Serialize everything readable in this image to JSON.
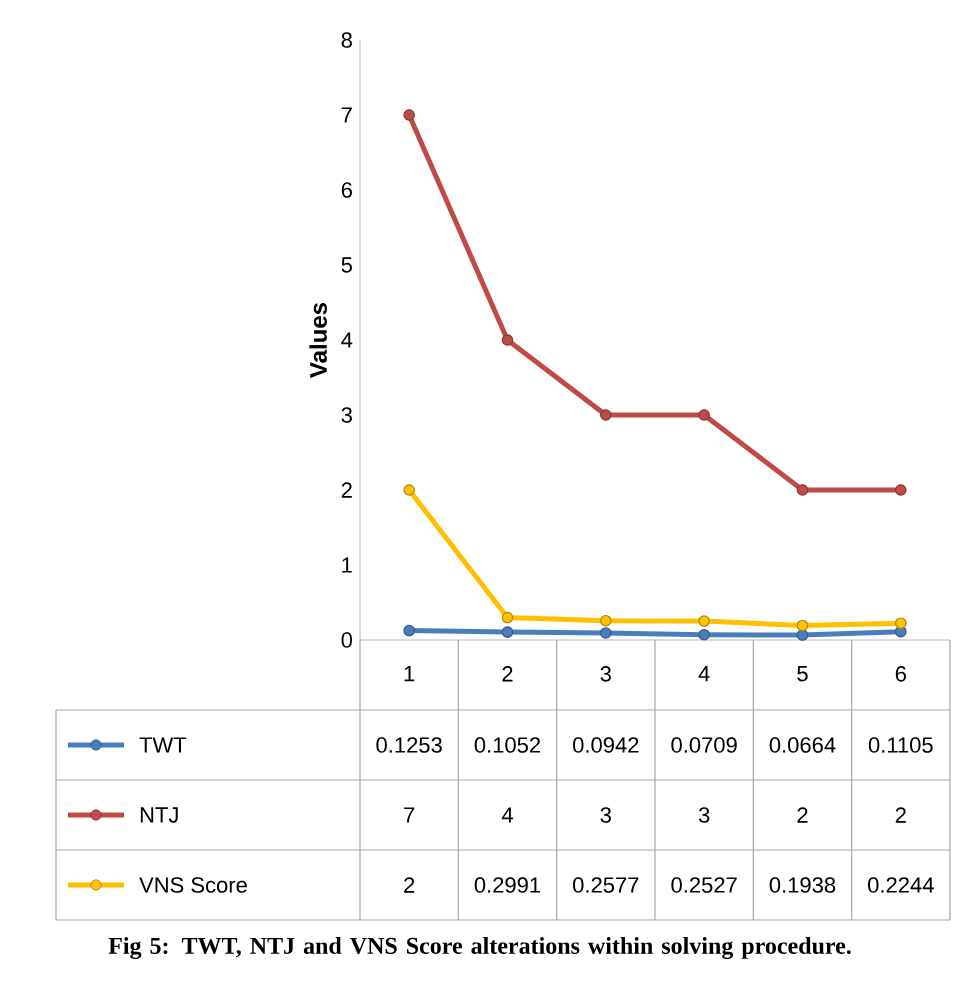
{
  "chart_data": {
    "type": "line",
    "title": "Fig 5: TWT, NTJ and VNS Score alterations within solving procedure.",
    "ylabel": "Values",
    "categories": [
      "1",
      "2",
      "3",
      "4",
      "5",
      "6"
    ],
    "series": [
      {
        "name": "TWT",
        "color": "#4a7ebb",
        "values": [
          0.1253,
          0.1052,
          0.0942,
          0.0709,
          0.0664,
          0.1105
        ]
      },
      {
        "name": "NTJ",
        "color": "#be4b48",
        "values": [
          7,
          4,
          3,
          3,
          2,
          2
        ]
      },
      {
        "name": "VNS Score",
        "color": "#ffc000",
        "values": [
          2,
          0.2991,
          0.2577,
          0.2527,
          0.1938,
          0.2244
        ]
      }
    ],
    "ylim": [
      0,
      8
    ],
    "yticks": [
      0,
      1,
      2,
      3,
      4,
      5,
      6,
      7,
      8
    ],
    "marker": "circle",
    "legend": "bottom left",
    "data_labels": true,
    "grid": false
  }
}
